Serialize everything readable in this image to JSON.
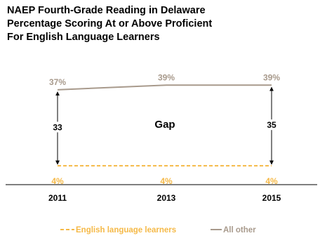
{
  "colors": {
    "ell": "#f5b947",
    "other": "#a89a8c",
    "arrow": "#000000",
    "axis": "#000000"
  },
  "chart_data": {
    "type": "line",
    "title": [
      "NAEP Fourth-Grade Reading in Delaware",
      "Percentage Scoring At or Above Proficient",
      "For English Language Learners"
    ],
    "xlabel": "",
    "ylabel": "",
    "categories": [
      "2011",
      "2013",
      "2015"
    ],
    "series": [
      {
        "name": "English language learners",
        "values": [
          4,
          4,
          4
        ],
        "labels": [
          "4%",
          "4%",
          "4%"
        ],
        "style": "dashed"
      },
      {
        "name": "All other",
        "values": [
          37,
          39,
          39
        ],
        "labels": [
          "37%",
          "39%",
          "39%"
        ],
        "style": "solid"
      }
    ],
    "gaps": [
      {
        "category": "2011",
        "value": 33,
        "label": "33"
      },
      {
        "category": "2015",
        "value": 35,
        "label": "35"
      }
    ],
    "annotation": "Gap",
    "legend_position": "bottom",
    "grid": false
  }
}
